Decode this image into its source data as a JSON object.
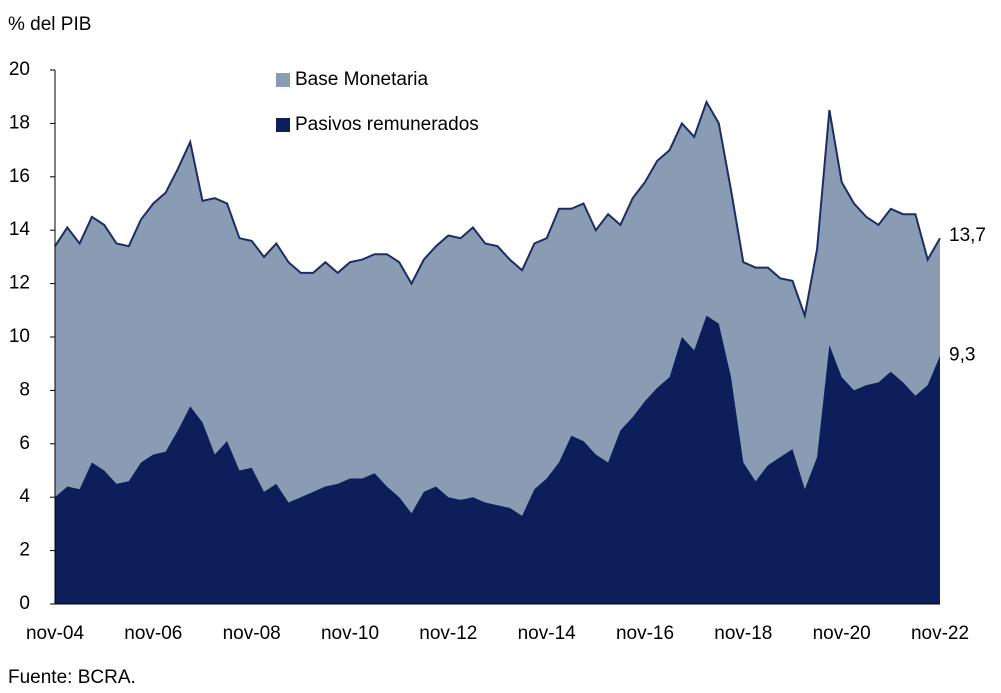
{
  "chart_data": {
    "type": "area",
    "y_label": "% del PIB",
    "source": "Fuente: BCRA.",
    "categories": [
      "nov-04",
      null,
      null,
      null,
      null,
      null,
      null,
      null,
      "nov-06",
      null,
      null,
      null,
      null,
      null,
      null,
      null,
      "nov-08",
      null,
      null,
      null,
      null,
      null,
      null,
      null,
      "nov-10",
      null,
      null,
      null,
      null,
      null,
      null,
      null,
      "nov-12",
      null,
      null,
      null,
      null,
      null,
      null,
      null,
      "nov-14",
      null,
      null,
      null,
      null,
      null,
      null,
      null,
      "nov-16",
      null,
      null,
      null,
      null,
      null,
      null,
      null,
      "nov-18",
      null,
      null,
      null,
      null,
      null,
      null,
      null,
      "nov-20",
      null,
      null,
      null,
      null,
      null,
      null,
      null,
      "nov-22"
    ],
    "series": [
      {
        "name": "Base Monetaria",
        "color": "#8a9bb4",
        "line_color": "#1b2d63",
        "end_label": "13,7",
        "values": [
          13.4,
          14.1,
          13.5,
          14.5,
          14.2,
          13.5,
          13.4,
          14.4,
          15.0,
          15.4,
          16.3,
          17.3,
          15.1,
          15.2,
          15.0,
          13.7,
          13.6,
          13.0,
          13.5,
          12.8,
          12.4,
          12.4,
          12.8,
          12.4,
          12.8,
          12.9,
          13.1,
          13.1,
          12.8,
          12.0,
          12.9,
          13.4,
          13.8,
          13.7,
          14.1,
          13.5,
          13.4,
          12.9,
          12.5,
          13.5,
          13.7,
          14.8,
          14.8,
          15.0,
          14.0,
          14.6,
          14.2,
          15.2,
          15.8,
          16.6,
          17.0,
          18.0,
          17.5,
          18.8,
          18.0,
          15.5,
          12.8,
          12.6,
          12.6,
          12.2,
          12.1,
          10.8,
          13.3,
          18.5,
          15.8,
          15.0,
          14.5,
          14.2,
          14.8,
          14.6,
          14.6,
          12.9,
          13.7
        ]
      },
      {
        "name": "Pasivos remunerados",
        "color": "#0c1f5b",
        "end_label": "9,3",
        "values": [
          4.0,
          4.4,
          4.3,
          5.3,
          5.0,
          4.5,
          4.6,
          5.3,
          5.6,
          5.7,
          6.5,
          7.4,
          6.8,
          5.6,
          6.1,
          5.0,
          5.1,
          4.2,
          4.5,
          3.8,
          4.0,
          4.2,
          4.4,
          4.5,
          4.7,
          4.7,
          4.9,
          4.4,
          4.0,
          3.4,
          4.2,
          4.4,
          4.0,
          3.9,
          4.0,
          3.8,
          3.7,
          3.6,
          3.3,
          4.3,
          4.7,
          5.3,
          6.3,
          6.1,
          5.6,
          5.3,
          6.5,
          7.0,
          7.6,
          8.1,
          8.5,
          10.0,
          9.5,
          10.8,
          10.5,
          8.5,
          5.3,
          4.6,
          5.2,
          5.5,
          5.8,
          4.3,
          5.5,
          9.7,
          8.5,
          8.0,
          8.2,
          8.3,
          8.7,
          8.3,
          7.8,
          8.2,
          9.3
        ]
      }
    ],
    "ylim": [
      0,
      20
    ],
    "yticks": [
      0,
      2,
      4,
      6,
      8,
      10,
      12,
      14,
      16,
      18,
      20
    ],
    "grid": false,
    "legend": "top"
  }
}
